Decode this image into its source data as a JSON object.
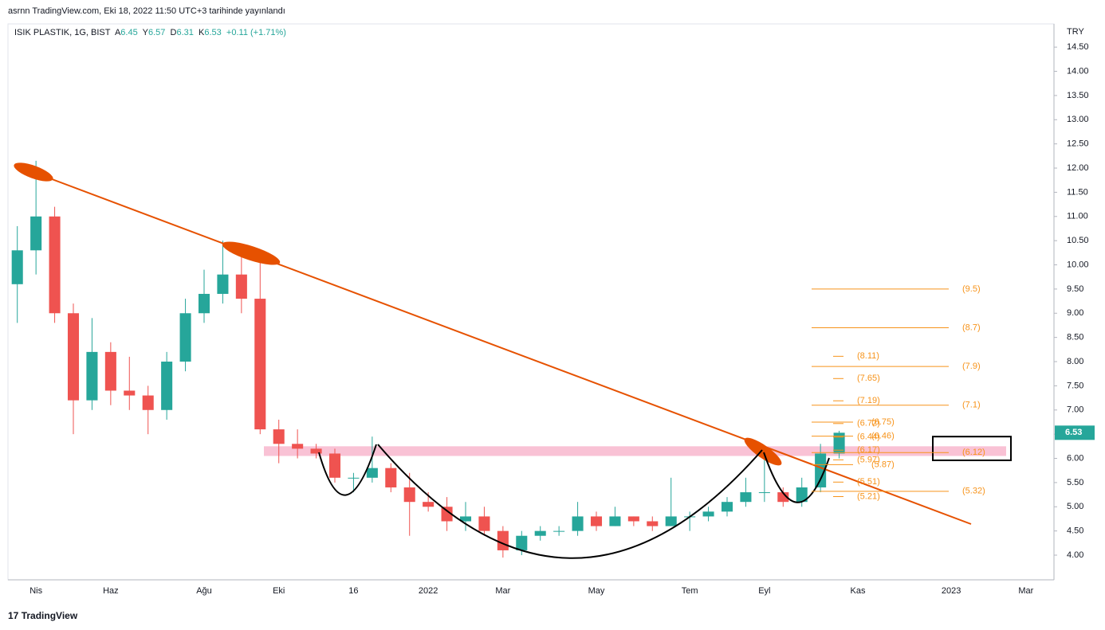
{
  "header": {
    "published": "asrnn TradingView.com, Eki 18, 2022 11:50 UTC+3 tarihinde yayınlandı",
    "footer": "TradingView"
  },
  "legend": {
    "symbol": "ISIK PLASTIK, 1G, BIST",
    "open_label": "A",
    "open": "6.45",
    "high_label": "Y",
    "high": "6.57",
    "low_label": "D",
    "low": "6.31",
    "close_label": "K",
    "close": "6.53",
    "change": "+0.11 (+1.71%)"
  },
  "chart_data": {
    "type": "candlestick",
    "currency": "TRY",
    "categories": [
      null,
      "Nis",
      null,
      null,
      null,
      "Haz",
      null,
      null,
      null,
      null,
      "Ağu",
      null,
      null,
      null,
      "Eki",
      null,
      null,
      null,
      "16",
      null,
      null,
      null,
      "2022",
      null,
      null,
      null,
      "Mar",
      null,
      null,
      null,
      null,
      "May",
      null,
      null,
      null,
      null,
      "Tem",
      null,
      null,
      null,
      "Eyl",
      null,
      null,
      null,
      null,
      "Kas",
      null,
      null,
      null,
      null,
      "2023",
      null,
      null,
      null,
      "Mar",
      null
    ],
    "open": [
      9.6,
      10.3,
      11.0,
      9.0,
      7.2,
      8.2,
      7.4,
      7.3,
      7.0,
      8.0,
      9.0,
      9.4,
      9.8,
      9.3,
      6.6,
      6.3,
      6.2,
      6.1,
      5.6,
      5.6,
      5.8,
      5.4,
      5.1,
      5.0,
      4.7,
      4.8,
      4.5,
      4.1,
      4.4,
      4.5,
      4.5,
      4.8,
      4.6,
      4.8,
      4.7,
      4.6,
      4.8,
      4.8,
      4.9,
      5.1,
      5.3,
      5.3,
      5.1,
      5.4,
      6.1,
      null,
      null,
      null,
      null,
      null,
      null,
      null,
      null,
      null,
      null,
      null
    ],
    "high": [
      10.8,
      12.15,
      11.2,
      9.2,
      8.9,
      8.4,
      8.1,
      7.5,
      8.2,
      9.3,
      9.9,
      10.5,
      10.2,
      10.1,
      6.8,
      6.6,
      6.3,
      6.2,
      5.7,
      6.45,
      5.9,
      5.7,
      5.3,
      5.2,
      5.1,
      5.0,
      4.6,
      4.5,
      4.6,
      4.6,
      5.1,
      4.9,
      5.0,
      4.8,
      4.8,
      5.6,
      4.9,
      5.0,
      5.2,
      5.6,
      6.25,
      5.4,
      5.6,
      6.3,
      6.57,
      null,
      null,
      null,
      null,
      null,
      null,
      null,
      null,
      null,
      null,
      null
    ],
    "low": [
      8.8,
      9.8,
      8.8,
      6.5,
      7.0,
      7.1,
      7.0,
      6.5,
      6.8,
      7.8,
      8.8,
      9.2,
      9.0,
      6.5,
      5.9,
      6.0,
      6.0,
      5.5,
      5.3,
      5.5,
      5.3,
      4.4,
      4.9,
      4.5,
      4.5,
      4.4,
      3.95,
      4.0,
      4.3,
      4.4,
      4.4,
      4.5,
      4.6,
      4.6,
      4.5,
      4.6,
      4.5,
      4.7,
      4.8,
      5.0,
      5.1,
      5.0,
      5.0,
      5.3,
      6.0,
      null,
      null,
      null,
      null,
      null,
      null,
      null,
      null,
      null,
      null,
      null
    ],
    "close": [
      10.3,
      11.0,
      9.0,
      7.2,
      8.2,
      7.4,
      7.3,
      7.0,
      8.0,
      9.0,
      9.4,
      9.8,
      9.3,
      6.6,
      6.3,
      6.2,
      6.1,
      5.6,
      5.6,
      5.8,
      5.4,
      5.1,
      5.0,
      4.7,
      4.8,
      4.5,
      4.1,
      4.4,
      4.5,
      4.5,
      4.8,
      4.6,
      4.8,
      4.7,
      4.6,
      4.8,
      4.8,
      4.9,
      5.1,
      5.3,
      5.3,
      5.1,
      5.4,
      6.1,
      6.53,
      null,
      null,
      null,
      null,
      null,
      null,
      null,
      null,
      null,
      null,
      null
    ],
    "up_color": "#26a69a",
    "down_color": "#ef5350",
    "ylim": [
      3.49,
      14.98
    ],
    "yticks": [
      {
        "value": 4,
        "label": "4.00"
      },
      {
        "value": 4.5,
        "label": "4.50"
      },
      {
        "value": 5,
        "label": "5.00"
      },
      {
        "value": 5.5,
        "label": "5.50"
      },
      {
        "value": 6,
        "label": "6.00"
      },
      {
        "value": 6.5,
        "label": "6.50"
      },
      {
        "value": 7,
        "label": "7.00"
      },
      {
        "value": 7.5,
        "label": "7.50"
      },
      {
        "value": 8,
        "label": "8.00"
      },
      {
        "value": 8.5,
        "label": "8.50"
      },
      {
        "value": 9,
        "label": "9.00"
      },
      {
        "value": 9.5,
        "label": "9.50"
      },
      {
        "value": 10,
        "label": "10.00"
      },
      {
        "value": 10.5,
        "label": "10.50"
      },
      {
        "value": 11,
        "label": "11.00"
      },
      {
        "value": 11.5,
        "label": "11.50"
      },
      {
        "value": 12,
        "label": "12.00"
      },
      {
        "value": 12.5,
        "label": "12.50"
      },
      {
        "value": 13,
        "label": "13.00"
      },
      {
        "value": 13.5,
        "label": "13.50"
      },
      {
        "value": 14,
        "label": "14.00"
      },
      {
        "value": 14.5,
        "label": "14.50"
      }
    ],
    "last_price": {
      "value": 6.53,
      "label": "6.53"
    },
    "level_color": "#f7931a",
    "levels_right": [
      {
        "value": 9.5,
        "label": "(9.5)"
      },
      {
        "value": 8.7,
        "label": "(8.7)"
      },
      {
        "value": 7.9,
        "label": "(7.9)"
      },
      {
        "value": 7.1,
        "label": "(7.1)"
      },
      {
        "value": 6.12,
        "label": "(6.12)"
      },
      {
        "value": 5.32,
        "label": "(5.32)"
      }
    ],
    "levels_left": [
      {
        "value": 8.11,
        "label": "(8.11)"
      },
      {
        "value": 7.65,
        "label": "(7.65)"
      },
      {
        "value": 7.19,
        "label": "(7.19)"
      },
      {
        "value": 6.72,
        "label": "(6.72)"
      },
      {
        "value": 6.44,
        "label": "(6.44)"
      },
      {
        "value": 6.17,
        "label": "(6.17)"
      },
      {
        "value": 5.97,
        "label": "(5.97)"
      },
      {
        "value": 5.51,
        "label": "(5.51)"
      },
      {
        "value": 5.21,
        "label": "(5.21)"
      }
    ],
    "levels_mid": [
      {
        "value": 6.75,
        "label": "(6.75)"
      },
      {
        "value": 6.46,
        "label": "(6.46)"
      },
      {
        "value": 5.87,
        "label": "(5.87)"
      }
    ],
    "zone": [
      6.05,
      6.25
    ],
    "box": [
      5.96,
      6.45
    ]
  }
}
